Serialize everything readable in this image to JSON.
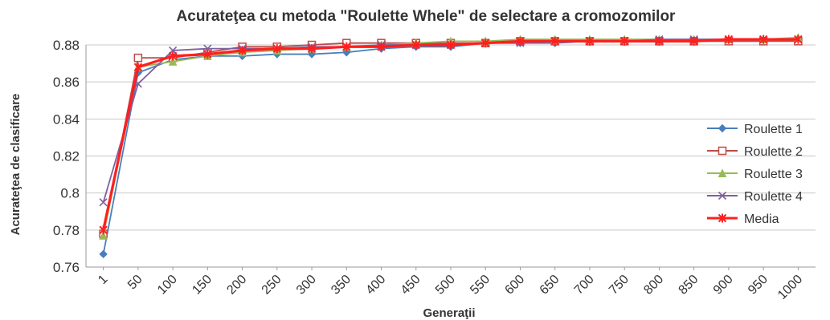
{
  "chart_data": {
    "type": "line",
    "title": "Acurateţea cu metoda \"Roulette Whele\" de selectare a cromozomilor",
    "xlabel": "Generaţii",
    "ylabel": "Acurateţea de clasificare",
    "ylim": [
      0.76,
      0.88
    ],
    "yticks": [
      "0.76",
      "0.78",
      "0.8",
      "0.82",
      "0.84",
      "0.86",
      "0.88"
    ],
    "grid": true,
    "legend_position": "right",
    "categories": [
      "1",
      "50",
      "100",
      "150",
      "200",
      "250",
      "300",
      "350",
      "400",
      "450",
      "500",
      "550",
      "600",
      "650",
      "700",
      "750",
      "800",
      "850",
      "900",
      "950",
      "1000"
    ],
    "series": [
      {
        "name": "Roulette 1",
        "color": "#4a7ebb",
        "marker": "diamond",
        "values": [
          0.767,
          0.865,
          0.872,
          0.874,
          0.874,
          0.875,
          0.875,
          0.876,
          0.878,
          0.879,
          0.879,
          0.881,
          0.881,
          0.881,
          0.882,
          0.882,
          0.882,
          0.882,
          0.882,
          0.882,
          0.883
        ]
      },
      {
        "name": "Roulette 2",
        "color": "#be4b48",
        "marker": "square",
        "values": [
          0.778,
          0.873,
          0.873,
          0.876,
          0.879,
          0.879,
          0.88,
          0.881,
          0.881,
          0.881,
          0.881,
          0.881,
          0.882,
          0.882,
          0.882,
          0.882,
          0.882,
          0.882,
          0.882,
          0.882,
          0.882
        ]
      },
      {
        "name": "Roulette 3",
        "color": "#98b954",
        "marker": "triangle",
        "values": [
          0.777,
          0.868,
          0.871,
          0.874,
          0.876,
          0.877,
          0.878,
          0.879,
          0.88,
          0.881,
          0.882,
          0.882,
          0.883,
          0.883,
          0.883,
          0.883,
          0.883,
          0.883,
          0.883,
          0.883,
          0.884
        ]
      },
      {
        "name": "Roulette 4",
        "color": "#7d60a0",
        "marker": "x",
        "values": [
          0.795,
          0.859,
          0.877,
          0.878,
          0.878,
          0.878,
          0.879,
          0.879,
          0.88,
          0.88,
          0.88,
          0.881,
          0.881,
          0.882,
          0.882,
          0.882,
          0.883,
          0.883,
          0.883,
          0.883,
          0.883
        ]
      },
      {
        "name": "Media",
        "color": "#ff1f1f",
        "marker": "star",
        "bold": true,
        "values": [
          0.78,
          0.868,
          0.874,
          0.875,
          0.877,
          0.878,
          0.878,
          0.879,
          0.879,
          0.88,
          0.88,
          0.881,
          0.882,
          0.882,
          0.882,
          0.882,
          0.882,
          0.882,
          0.883,
          0.883,
          0.883
        ]
      }
    ]
  }
}
